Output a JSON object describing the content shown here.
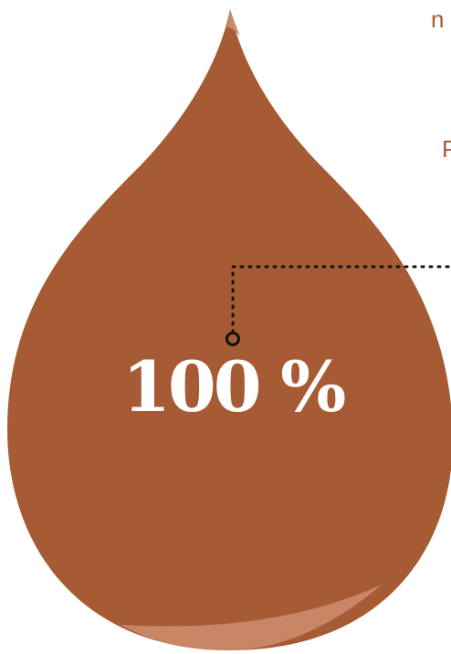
{
  "figure": {
    "value_label": "100 %",
    "fill_percent": 100,
    "side_text_top": "n",
    "side_text_mid": "P"
  },
  "colors": {
    "drop": "#a65b34",
    "drop_highlight": "#c9896a",
    "text_accent": "#a65b34",
    "leader_line": "#000000",
    "value_text": "#ffffff"
  }
}
